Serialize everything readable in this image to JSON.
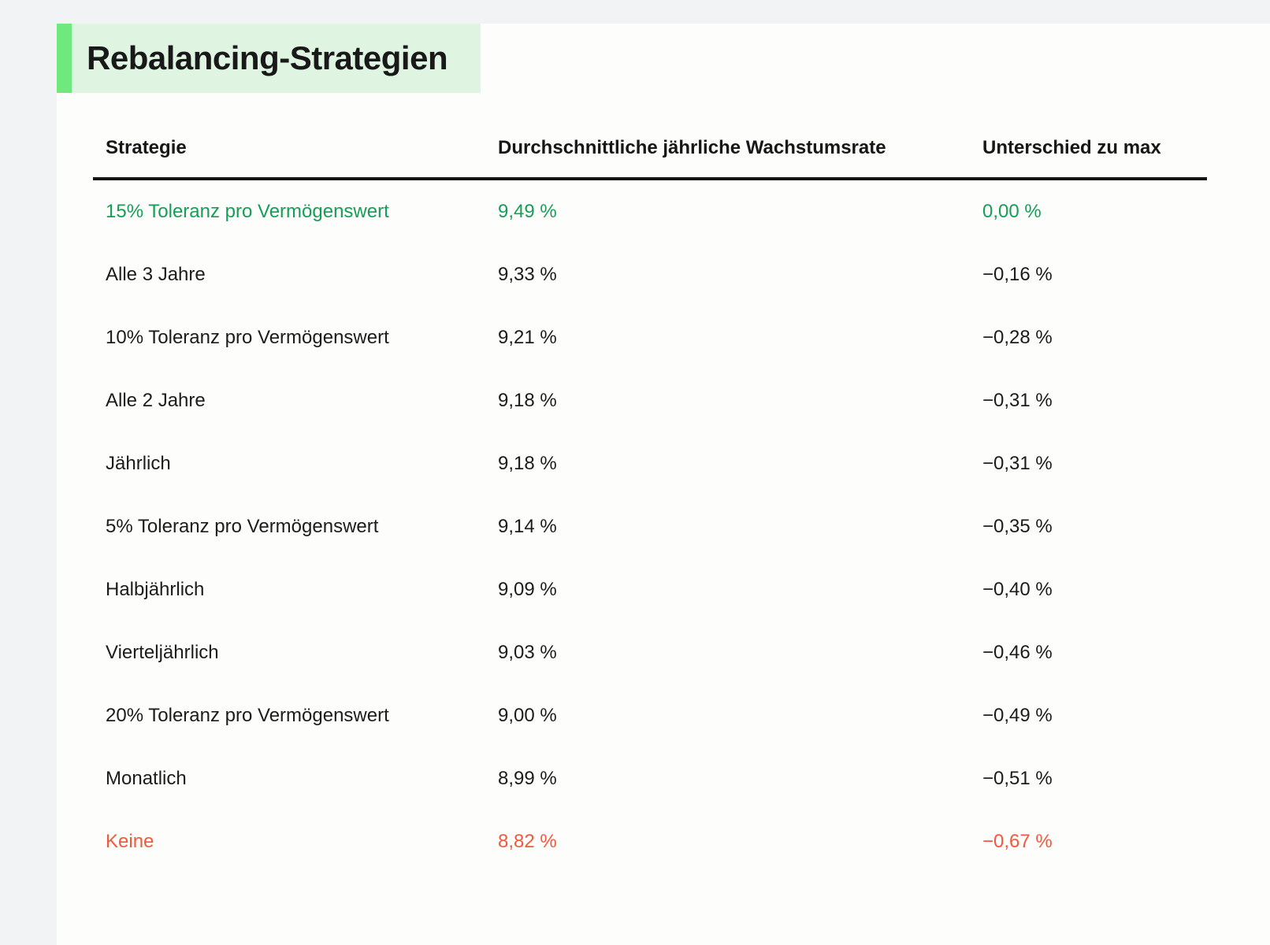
{
  "colors": {
    "page_background": "#f2f3f5",
    "card_background": "#fdfdfb",
    "accent_green_bar": "#6fe87d",
    "title_highlight_green": "#dff4e1",
    "text_primary": "#1c1c1c",
    "best_row_green": "#169e58",
    "worst_row_orange": "#f0593e",
    "header_rule": "#141414"
  },
  "header": {
    "title": "Rebalancing-Strategien"
  },
  "table": {
    "columns": {
      "strategy": "Strategie",
      "growth": "Durchschnittliche jährliche Wachstumsrate",
      "diff": "Unterschied zu max"
    },
    "rows": [
      {
        "strategy": "15% Toleranz pro Vermögenswert",
        "growth": "9,49 %",
        "diff": "0,00 %",
        "tone": "best"
      },
      {
        "strategy": "Alle 3 Jahre",
        "growth": "9,33 %",
        "diff": "−0,16 %"
      },
      {
        "strategy": "10% Toleranz pro Vermögenswert",
        "growth": "9,21 %",
        "diff": "−0,28 %"
      },
      {
        "strategy": "Alle 2 Jahre",
        "growth": "9,18 %",
        "diff": "−0,31 %"
      },
      {
        "strategy": "Jährlich",
        "growth": "9,18 %",
        "diff": "−0,31 %"
      },
      {
        "strategy": "5% Toleranz pro Vermögenswert",
        "growth": "9,14 %",
        "diff": "−0,35 %"
      },
      {
        "strategy": "Halbjährlich",
        "growth": "9,09 %",
        "diff": "−0,40 %"
      },
      {
        "strategy": "Vierteljährlich",
        "growth": "9,03 %",
        "diff": "−0,46 %"
      },
      {
        "strategy": "20% Toleranz pro Vermögenswert",
        "growth": "9,00 %",
        "diff": "−0,49 %"
      },
      {
        "strategy": "Monatlich",
        "growth": "8,99 %",
        "diff": "−0,51 %"
      },
      {
        "strategy": "Keine",
        "growth": "8,82 %",
        "diff": "−0,67 %",
        "tone": "worst"
      }
    ]
  },
  "chart_data": {
    "type": "table",
    "title": "Rebalancing-Strategien",
    "columns": [
      "Strategie",
      "Durchschnittliche jährliche Wachstumsrate",
      "Unterschied zu max"
    ],
    "rows": [
      [
        "15% Toleranz pro Vermögenswert",
        "9,49 %",
        "0,00 %"
      ],
      [
        "Alle 3 Jahre",
        "9,33 %",
        "−0,16 %"
      ],
      [
        "10% Toleranz pro Vermögenswert",
        "9,21 %",
        "−0,28 %"
      ],
      [
        "Alle 2 Jahre",
        "9,18 %",
        "−0,31 %"
      ],
      [
        "Jährlich",
        "9,18 %",
        "−0,31 %"
      ],
      [
        "5% Toleranz pro Vermögenswert",
        "9,14 %",
        "−0,35 %"
      ],
      [
        "Halbjährlich",
        "9,09 %",
        "−0,40 %"
      ],
      [
        "Vierteljährlich",
        "9,03 %",
        "−0,46 %"
      ],
      [
        "20% Toleranz pro Vermögenswert",
        "9,00 %",
        "−0,49 %"
      ],
      [
        "Monatlich",
        "8,99 %",
        "−0,51 %"
      ],
      [
        "Keine",
        "8,82 %",
        "−0,67 %"
      ]
    ],
    "growth_rate_percent": [
      9.49,
      9.33,
      9.21,
      9.18,
      9.18,
      9.14,
      9.09,
      9.03,
      9.0,
      8.99,
      8.82
    ],
    "diff_to_max_percent": [
      0.0,
      -0.16,
      -0.28,
      -0.31,
      -0.31,
      -0.35,
      -0.4,
      -0.46,
      -0.49,
      -0.51,
      -0.67
    ]
  }
}
